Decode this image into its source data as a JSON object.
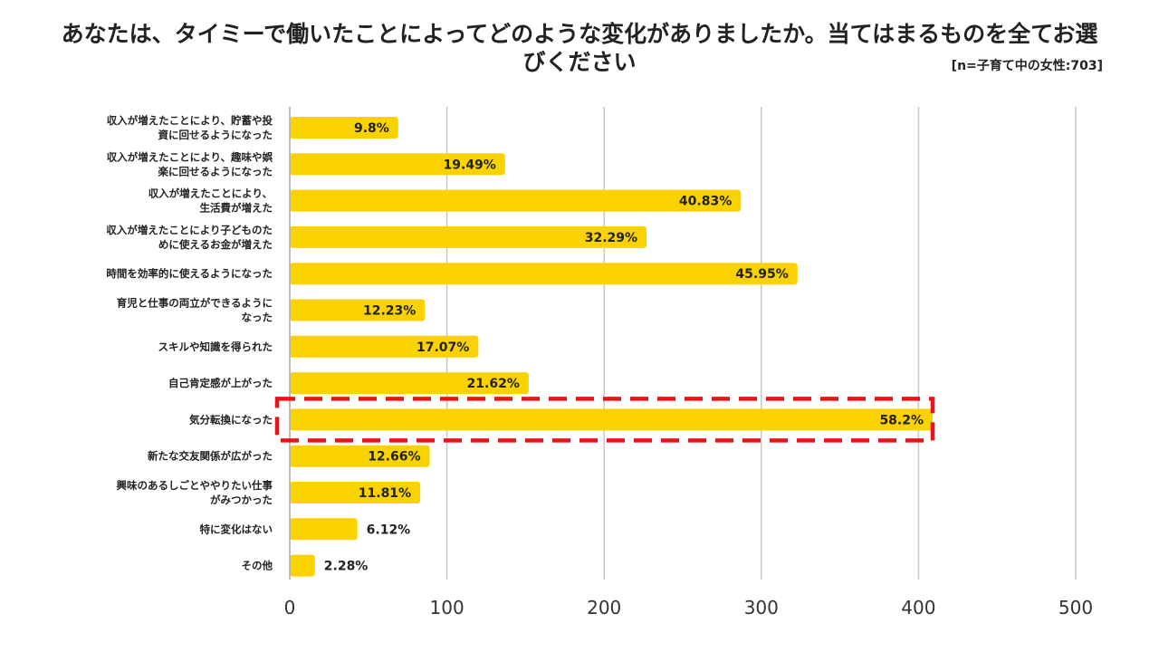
{
  "chart_data": {
    "type": "bar",
    "orientation": "horizontal",
    "title": "あなたは、タイミーで働いたことによってどのような変化がありましたか。当てはまるものを全てお選びください",
    "sample_note": "[n=子育て中の女性:703]",
    "categories": [
      [
        "収入が増えたことにより、貯蓄や投",
        "資に回せるようになった"
      ],
      [
        "収入が増えたことにより、趣味や娯",
        "楽に回せるようになった"
      ],
      [
        "収入が増えたことにより、",
        "生活費が増えた"
      ],
      [
        "収入が増えたことにより子どものた",
        "めに使えるお金が増えた"
      ],
      [
        "時間を効率的に使えるようになった"
      ],
      [
        "育児と仕事の両立ができるように",
        "なった"
      ],
      [
        "スキルや知識を得られた"
      ],
      [
        "自己肯定感が上がった"
      ],
      [
        "気分転換になった"
      ],
      [
        "新たな交友関係が広がった"
      ],
      [
        "興味のあるしごとややりたい仕事",
        "がみつかった"
      ],
      [
        "特に変化はない"
      ],
      [
        "その他"
      ]
    ],
    "values": [
      69,
      137,
      287,
      227,
      323,
      86,
      120,
      152,
      409,
      89,
      83,
      43,
      16
    ],
    "value_labels": [
      "9.8%",
      "19.49%",
      "40.83%",
      "32.29%",
      "45.95%",
      "12.23%",
      "17.07%",
      "21.62%",
      "58.2%",
      "12.66%",
      "11.81%",
      "6.12%",
      "2.28%"
    ],
    "xlim": [
      0,
      500
    ],
    "xticks": [
      0,
      100,
      200,
      300,
      400,
      500
    ],
    "grid": true,
    "highlight_index": 8,
    "bar_color": "#F9D200",
    "highlight_color": "#E8141A",
    "grid_color": "#C8C8C8"
  }
}
